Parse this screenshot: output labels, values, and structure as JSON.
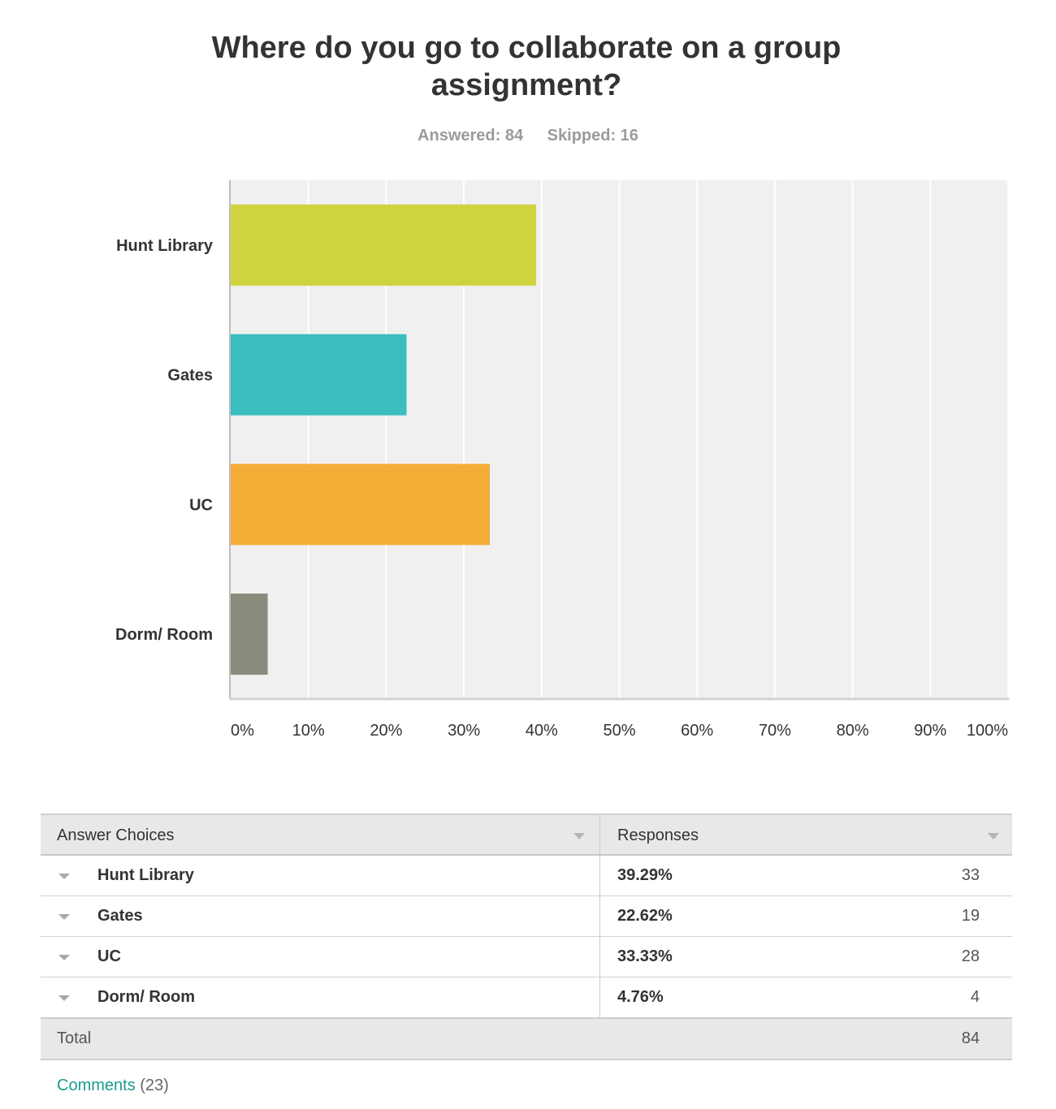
{
  "title": "Where do you go to collaborate on a group assignment?",
  "answered": "Answered: 84",
  "skipped": "Skipped: 16",
  "chart_data": {
    "type": "bar",
    "orientation": "horizontal",
    "categories": [
      "Hunt Library",
      "Gates",
      "UC",
      "Dorm/ Room"
    ],
    "values": [
      39.29,
      22.62,
      33.33,
      4.76
    ],
    "colors": [
      "#cfd43e",
      "#3cbdbf",
      "#f4ad36",
      "#8a8b7c"
    ],
    "xlim": [
      0,
      100
    ],
    "x_ticks": [
      "0%",
      "10%",
      "20%",
      "30%",
      "40%",
      "50%",
      "60%",
      "70%",
      "80%",
      "90%",
      "100%"
    ],
    "grid": true
  },
  "table": {
    "header": {
      "choices": "Answer Choices",
      "responses": "Responses"
    },
    "rows": [
      {
        "label": "Hunt Library",
        "percent": "39.29%",
        "count": "33"
      },
      {
        "label": "Gates",
        "percent": "22.62%",
        "count": "19"
      },
      {
        "label": "UC",
        "percent": "33.33%",
        "count": "28"
      },
      {
        "label": "Dorm/ Room",
        "percent": "4.76%",
        "count": "4"
      }
    ],
    "total": {
      "label": "Total",
      "count": "84"
    }
  },
  "comments": {
    "label": "Comments",
    "count": "(23)"
  }
}
